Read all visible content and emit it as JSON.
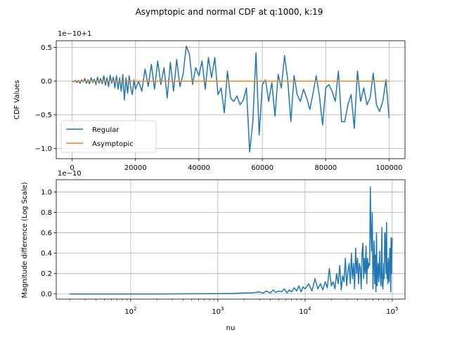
{
  "figure": {
    "title": "Asymptopic and normal CDF at q:1000, k:19",
    "colors": {
      "regular": "#1f77b4",
      "asymptotic": "#ff7f0e",
      "grid": "#b0b0b0"
    }
  },
  "chart_data": [
    {
      "type": "line",
      "ylabel": "CDF Values",
      "offset_text": "1e−10+1",
      "xlim": [
        -5000,
        105000
      ],
      "ylim": [
        -1.15,
        0.6
      ],
      "y_unit": "1e-10 offset from 1",
      "xticks": [
        0,
        20000,
        40000,
        60000,
        80000,
        100000
      ],
      "xtick_labels": [
        "0",
        "20000",
        "40000",
        "60000",
        "80000",
        "100000"
      ],
      "yticks": [
        -1.0,
        -0.5,
        0.0,
        0.5
      ],
      "ytick_labels": [
        "−1.0",
        "−0.5",
        "0.0",
        "0.5"
      ],
      "grid": true,
      "legend_position": "lower-left",
      "series": [
        {
          "name": "Regular",
          "x": [
            0,
            500,
            1000,
            1500,
            2000,
            2500,
            3000,
            3500,
            4000,
            4500,
            5000,
            5500,
            6000,
            6500,
            7000,
            7500,
            8000,
            8500,
            9000,
            9500,
            10000,
            10500,
            11000,
            11500,
            12000,
            12500,
            13000,
            13500,
            14000,
            14500,
            15000,
            15500,
            16000,
            16500,
            17000,
            17500,
            18000,
            18500,
            19000,
            19500,
            20000,
            21000,
            22000,
            23000,
            24000,
            25000,
            26000,
            27000,
            28000,
            29000,
            30000,
            31000,
            32000,
            33000,
            34000,
            35000,
            36000,
            37000,
            38000,
            39000,
            40000,
            41000,
            42000,
            43000,
            44000,
            45000,
            46000,
            47000,
            48000,
            49000,
            50000,
            51000,
            52000,
            53000,
            54000,
            55000,
            56000,
            57000,
            58000,
            59000,
            60000,
            61000,
            62000,
            63000,
            64000,
            65000,
            66000,
            67000,
            68000,
            69000,
            70000,
            71000,
            72000,
            73000,
            74000,
            75000,
            76000,
            77000,
            78000,
            79000,
            80000,
            81000,
            82000,
            83000,
            84000,
            85000,
            86000,
            87000,
            88000,
            89000,
            90000,
            91000,
            92000,
            93000,
            94000,
            95000,
            96000,
            97000,
            98000,
            99000,
            100000
          ],
          "y": [
            0,
            -0.01,
            0.01,
            -0.02,
            0.01,
            -0.03,
            0.02,
            -0.01,
            0.04,
            -0.03,
            0.02,
            -0.04,
            0.05,
            -0.02,
            0.03,
            -0.05,
            0.06,
            -0.03,
            0.04,
            -0.04,
            0.08,
            -0.06,
            0.05,
            -0.08,
            0.09,
            -0.03,
            0.06,
            -0.1,
            0.08,
            -0.12,
            0.05,
            -0.15,
            0.1,
            -0.28,
            0.05,
            -0.18,
            0.08,
            -0.1,
            -0.2,
            0.02,
            -0.12,
            0.0,
            -0.15,
            0.18,
            -0.08,
            0.25,
            -0.12,
            0.3,
            -0.05,
            0.2,
            -0.25,
            0.28,
            -0.15,
            0.32,
            -0.08,
            0.1,
            0.52,
            0.4,
            -0.05,
            0.2,
            0.08,
            0.3,
            -0.12,
            0.35,
            0.05,
            0.35,
            -0.2,
            -0.1,
            -0.47,
            0.15,
            -0.25,
            -0.3,
            -0.22,
            -0.35,
            -0.28,
            -0.1,
            -1.05,
            -0.6,
            0.42,
            -0.8,
            -0.05,
            0.02,
            -0.3,
            -0.02,
            -0.52,
            0.1,
            -0.1,
            0.38,
            0.02,
            -0.6,
            0.08,
            -0.2,
            -0.3,
            -0.12,
            -0.25,
            -0.42,
            -0.18,
            0.08,
            -0.22,
            -0.65,
            -0.1,
            -0.05,
            -0.15,
            -0.3,
            0.15,
            -0.6,
            -0.6,
            -0.35,
            -0.2,
            -0.7,
            0.15,
            -0.3,
            -0.1,
            -0.35,
            -0.25,
            0.12,
            -0.35,
            -0.45,
            -0.3,
            0.02,
            -0.55
          ]
        },
        {
          "name": "Asymptotic",
          "x": [
            0,
            100000
          ],
          "y": [
            0,
            0
          ]
        }
      ],
      "legend": [
        "Regular",
        "Asymptopic"
      ]
    },
    {
      "type": "line",
      "xlabel": "nu",
      "ylabel": "Magnitude difference (Log Scale)",
      "offset_text": "1e−10",
      "x_scale": "log",
      "xlim": [
        14,
        140000
      ],
      "ylim": [
        -0.05,
        1.12
      ],
      "y_unit": "1e-10",
      "xticks": [
        100,
        1000,
        10000,
        100000
      ],
      "xtick_labels": [
        "10",
        "10",
        "10",
        "10"
      ],
      "xtick_exponents": [
        "2",
        "3",
        "4",
        "5"
      ],
      "yticks": [
        0.0,
        0.2,
        0.4,
        0.6,
        0.8,
        1.0
      ],
      "ytick_labels": [
        "0.0",
        "0.2",
        "0.4",
        "0.6",
        "0.8",
        "1.0"
      ],
      "grid": true,
      "series": [
        {
          "x": [
            20,
            50,
            100,
            200,
            500,
            800,
            1000,
            1500,
            2000,
            2500,
            3000,
            3300,
            3600,
            4000,
            4300,
            4600,
            5000,
            5400,
            5800,
            6200,
            6600,
            7000,
            7500,
            8000,
            8500,
            9000,
            9500,
            10000,
            11000,
            12000,
            13000,
            14000,
            15000,
            16000,
            17000,
            18000,
            19000,
            20000,
            21000,
            22000,
            23000,
            24000,
            25000,
            26000,
            27000,
            28000,
            29000,
            30000,
            31000,
            32000,
            33000,
            34000,
            35000,
            36000,
            37000,
            38000,
            39000,
            40000,
            41000,
            42000,
            43000,
            44000,
            45000,
            46000,
            47000,
            48000,
            49000,
            50000,
            51000,
            52000,
            53000,
            54000,
            55000,
            56000,
            57000,
            58000,
            59000,
            60000,
            61000,
            62000,
            63000,
            64000,
            65000,
            66000,
            67000,
            68000,
            69000,
            70000,
            71000,
            72000,
            73000,
            74000,
            75000,
            76000,
            77000,
            78000,
            79000,
            80000,
            81000,
            82000,
            83000,
            84000,
            85000,
            86000,
            87000,
            88000,
            89000,
            90000,
            91000,
            92000,
            93000,
            94000,
            95000,
            96000,
            97000,
            98000,
            99000,
            100000
          ],
          "y": [
            0.0,
            0.0,
            0.0,
            0.0,
            0.002,
            0.003,
            0.004,
            0.006,
            0.01,
            0.012,
            0.02,
            0.008,
            0.03,
            0.01,
            0.04,
            0.015,
            0.03,
            0.02,
            0.05,
            0.01,
            0.04,
            0.02,
            0.06,
            0.03,
            0.08,
            0.02,
            0.07,
            0.05,
            0.1,
            0.03,
            0.15,
            0.05,
            0.1,
            0.04,
            0.12,
            0.06,
            0.25,
            0.08,
            0.12,
            0.05,
            0.2,
            0.1,
            0.28,
            0.04,
            0.18,
            0.12,
            0.35,
            0.08,
            0.22,
            0.3,
            0.1,
            0.4,
            0.15,
            0.3,
            0.05,
            0.45,
            0.2,
            0.35,
            0.1,
            0.3,
            0.25,
            0.05,
            0.4,
            0.5,
            0.15,
            0.35,
            0.2,
            0.47,
            0.1,
            0.35,
            0.25,
            0.3,
            0.28,
            1.05,
            0.6,
            0.42,
            0.8,
            0.05,
            0.3,
            0.52,
            0.1,
            0.38,
            0.02,
            0.6,
            0.08,
            0.2,
            0.3,
            0.12,
            0.25,
            0.42,
            0.18,
            0.08,
            0.22,
            0.65,
            0.1,
            0.05,
            0.15,
            0.3,
            0.15,
            0.6,
            0.6,
            0.35,
            0.2,
            0.7,
            0.15,
            0.3,
            0.1,
            0.35,
            0.25,
            0.12,
            0.35,
            0.45,
            0.3,
            0.02,
            0.55,
            0.2,
            0.4,
            0.55
          ]
        }
      ]
    }
  ]
}
